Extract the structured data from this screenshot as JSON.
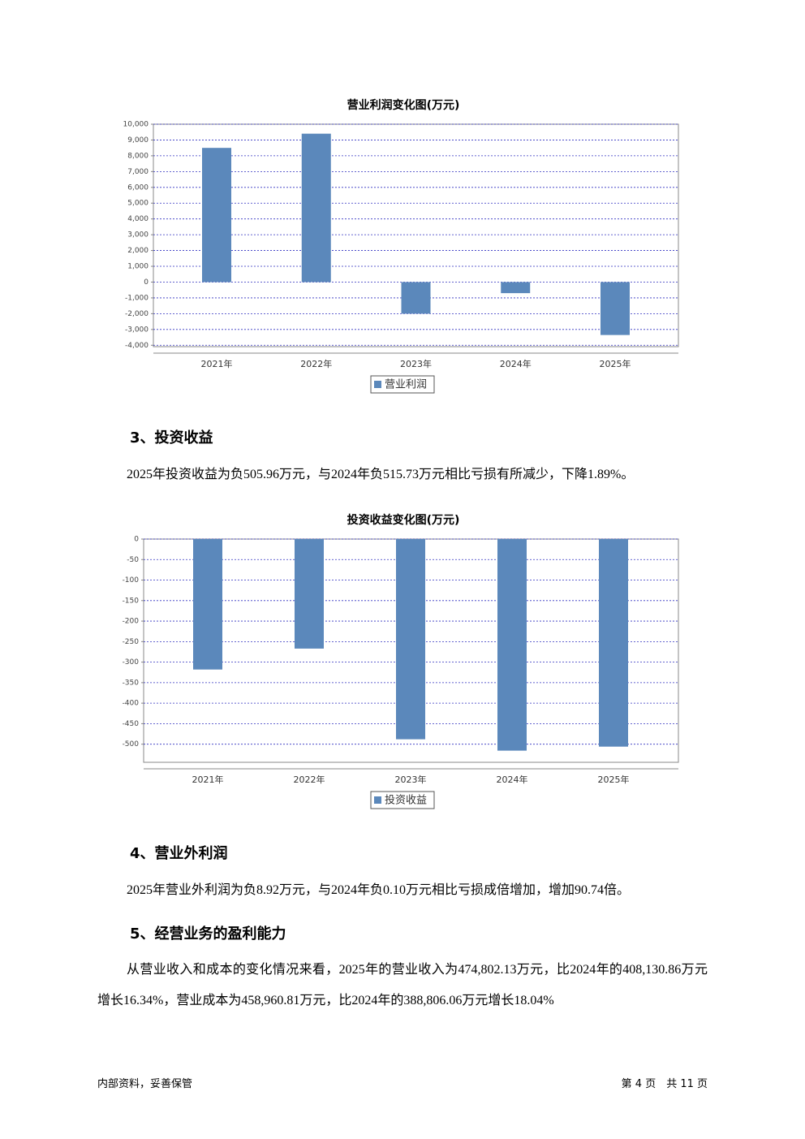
{
  "chart_data": [
    {
      "type": "bar",
      "title": "营业利润变化图(万元)",
      "categories": [
        "2021年",
        "2022年",
        "2023年",
        "2024年",
        "2025年"
      ],
      "series": [
        {
          "name": "营业利润",
          "color": "#5b88bb",
          "values": [
            8500,
            9400,
            -2000,
            -700,
            -3350
          ]
        }
      ],
      "ylim": [
        -4500,
        10000
      ],
      "yticks": [
        {
          "value": 10000,
          "label": "10,000"
        },
        {
          "value": 9000,
          "label": "9,000"
        },
        {
          "value": 8000,
          "label": "8,000"
        },
        {
          "value": 7000,
          "label": "7,000"
        },
        {
          "value": 6000,
          "label": "6,000"
        },
        {
          "value": 5000,
          "label": "5,000"
        },
        {
          "value": 4000,
          "label": "4,000"
        },
        {
          "value": 3000,
          "label": "3,000"
        },
        {
          "value": 2000,
          "label": "2,000"
        },
        {
          "value": 1000,
          "label": "1,000"
        },
        0,
        {
          "value": -1000,
          "label": "-1,000"
        },
        {
          "value": -2000,
          "label": "-2,000"
        },
        {
          "value": -3000,
          "label": "-3,000"
        },
        {
          "value": -4000,
          "label": "-4,000"
        }
      ],
      "grid": true
    },
    {
      "type": "bar",
      "title": "投资收益变化图(万元)",
      "categories": [
        "2021年",
        "2022年",
        "2023年",
        "2024年",
        "2025年"
      ],
      "series": [
        {
          "name": "投资收益",
          "color": "#5b88bb",
          "values": [
            -318,
            -267,
            -488,
            -515.73,
            -505.96
          ]
        }
      ],
      "ylim": [
        -560,
        0
      ],
      "yticks": [
        0,
        -50,
        -100,
        -150,
        -200,
        -250,
        -300,
        -350,
        -400,
        -450,
        -500
      ],
      "grid": true
    }
  ],
  "headings": [
    "3、投资收益",
    "4、营业外利润",
    "5、经营业务的盈利能力"
  ],
  "paragraphs": [
    "2025年投资收益为负505.96万元，与2024年负515.73万元相比亏损有所减少，下降1.89%。",
    "2025年营业外利润为负8.92万元，与2024年负0.10万元相比亏损成倍增加，增加90.74倍。",
    "从营业收入和成本的变化情况来看，2025年的营业收入为474,802.13万元，比2024年的408,130.86万元增长16.34%，营业成本为458,960.81万元，比2024年的388,806.06万元增长18.04%"
  ],
  "footer": {
    "left": "内部资料，妥善保管",
    "right": "第 4 页　共 11 页"
  }
}
